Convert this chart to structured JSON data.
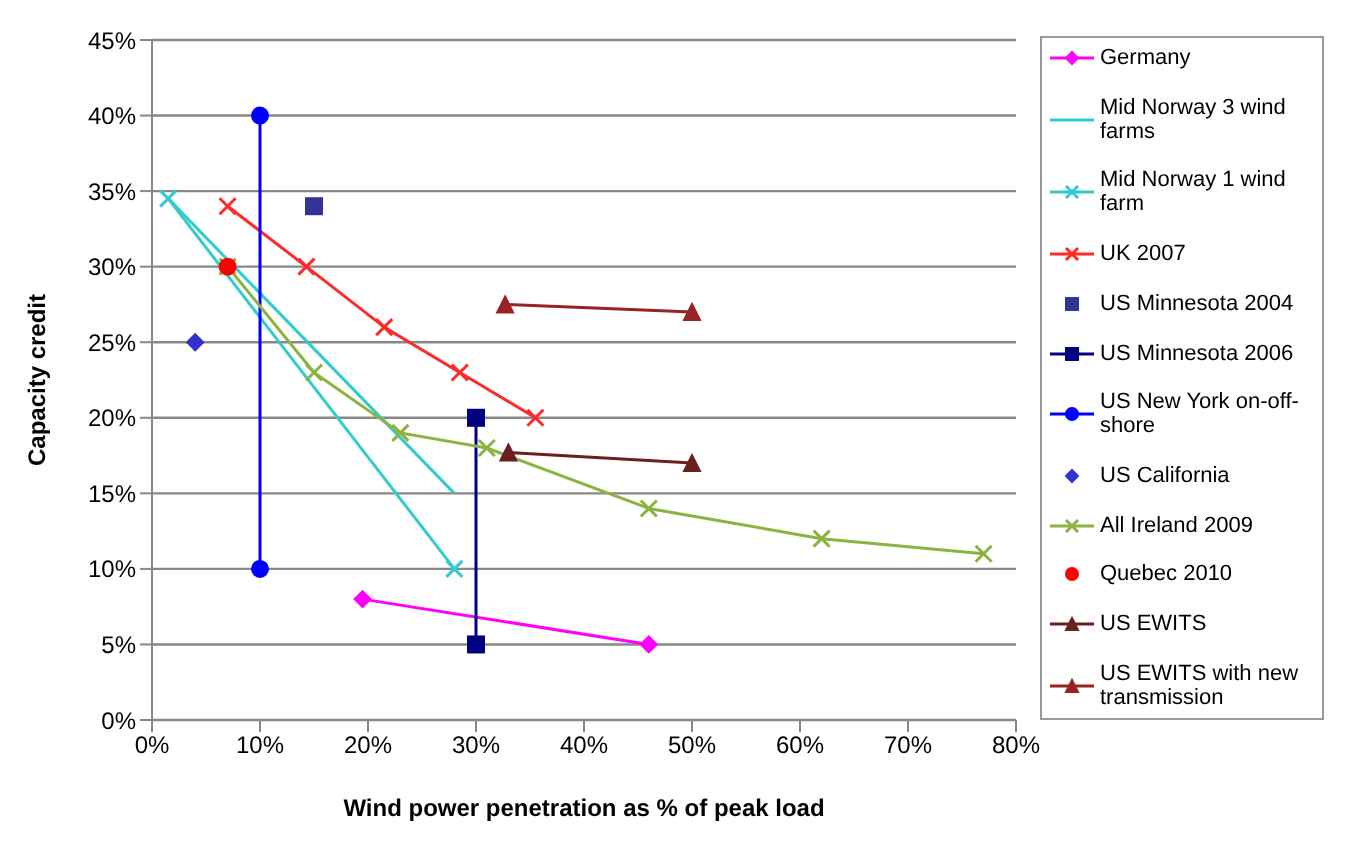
{
  "chart_data": {
    "type": "line",
    "xlabel": "Wind power penetration as % of peak load",
    "ylabel": "Capacity credit",
    "xlim": [
      0,
      80
    ],
    "xticks": [
      {
        "value": 0,
        "label": "0%"
      },
      {
        "value": 10,
        "label": "10%"
      },
      {
        "value": 20,
        "label": "20%"
      },
      {
        "value": 30,
        "label": "30%"
      },
      {
        "value": 40,
        "label": "40%"
      },
      {
        "value": 50,
        "label": "50%"
      },
      {
        "value": 60,
        "label": "60%"
      },
      {
        "value": 70,
        "label": "70%"
      },
      {
        "value": 80,
        "label": "80%"
      }
    ],
    "ylim": [
      0,
      45
    ],
    "yticks": [
      {
        "value": 0,
        "label": "0%"
      },
      {
        "value": 5,
        "label": "5%"
      },
      {
        "value": 10,
        "label": "10%"
      },
      {
        "value": 15,
        "label": "15%"
      },
      {
        "value": 20,
        "label": "20%"
      },
      {
        "value": 25,
        "label": "25%"
      },
      {
        "value": 30,
        "label": "30%"
      },
      {
        "value": 35,
        "label": "35%"
      },
      {
        "value": 40,
        "label": "40%"
      },
      {
        "value": 45,
        "label": "45%"
      }
    ],
    "grid": "y",
    "legend": "right",
    "series": [
      {
        "name": "Germany",
        "color": "#ff00ff",
        "marker": "diamond",
        "x": [
          19.5,
          46
        ],
        "values": [
          8,
          5
        ]
      },
      {
        "name": "Mid Norway 3 wind farms",
        "color": "#33cccc",
        "x": [
          1.5,
          28
        ],
        "values": [
          34.5,
          15
        ]
      },
      {
        "name": "Mid Norway 1 wind farm",
        "color": "#33cccc",
        "marker": "cross",
        "x": [
          1.5,
          28
        ],
        "values": [
          34.5,
          10
        ]
      },
      {
        "name": "UK 2007",
        "color": "#ff2a2a",
        "marker": "cross",
        "x": [
          7,
          14.3,
          21.5,
          28.5,
          35.5
        ],
        "values": [
          34,
          30,
          26,
          23,
          20
        ]
      },
      {
        "name": "US Minnesota 2004",
        "type": "scatter",
        "color": "#333399",
        "marker": "square",
        "x": [
          15
        ],
        "values": [
          34
        ]
      },
      {
        "name": "US Minnesota 2006",
        "color": "#000080",
        "marker": "square",
        "x": [
          30,
          30
        ],
        "values": [
          20,
          5
        ]
      },
      {
        "name": "US New York on-off-shore",
        "color": "#0000ff",
        "marker": "circle",
        "x": [
          10,
          10
        ],
        "values": [
          40,
          10
        ]
      },
      {
        "name": "US California",
        "type": "scatter",
        "color": "#3333cc",
        "marker": "diamond",
        "x": [
          4
        ],
        "values": [
          25
        ]
      },
      {
        "name": "All Ireland 2009",
        "color": "#8cb33f",
        "marker": "cross",
        "x": [
          7,
          15,
          23,
          31,
          46,
          62,
          77
        ],
        "values": [
          30,
          23,
          19,
          18,
          14,
          12,
          11
        ]
      },
      {
        "name": "Quebec 2010",
        "type": "scatter",
        "color": "#ff0000",
        "marker": "circle",
        "x": [
          7
        ],
        "values": [
          30
        ]
      },
      {
        "name": "US EWITS",
        "color": "#6b1f1f",
        "marker": "triangle",
        "x": [
          33,
          50
        ],
        "values": [
          17.7,
          17
        ]
      },
      {
        "name": "US EWITS with new transmission",
        "color": "#992222",
        "marker": "triangle",
        "x": [
          32.7,
          50
        ],
        "values": [
          27.5,
          27
        ]
      }
    ]
  }
}
